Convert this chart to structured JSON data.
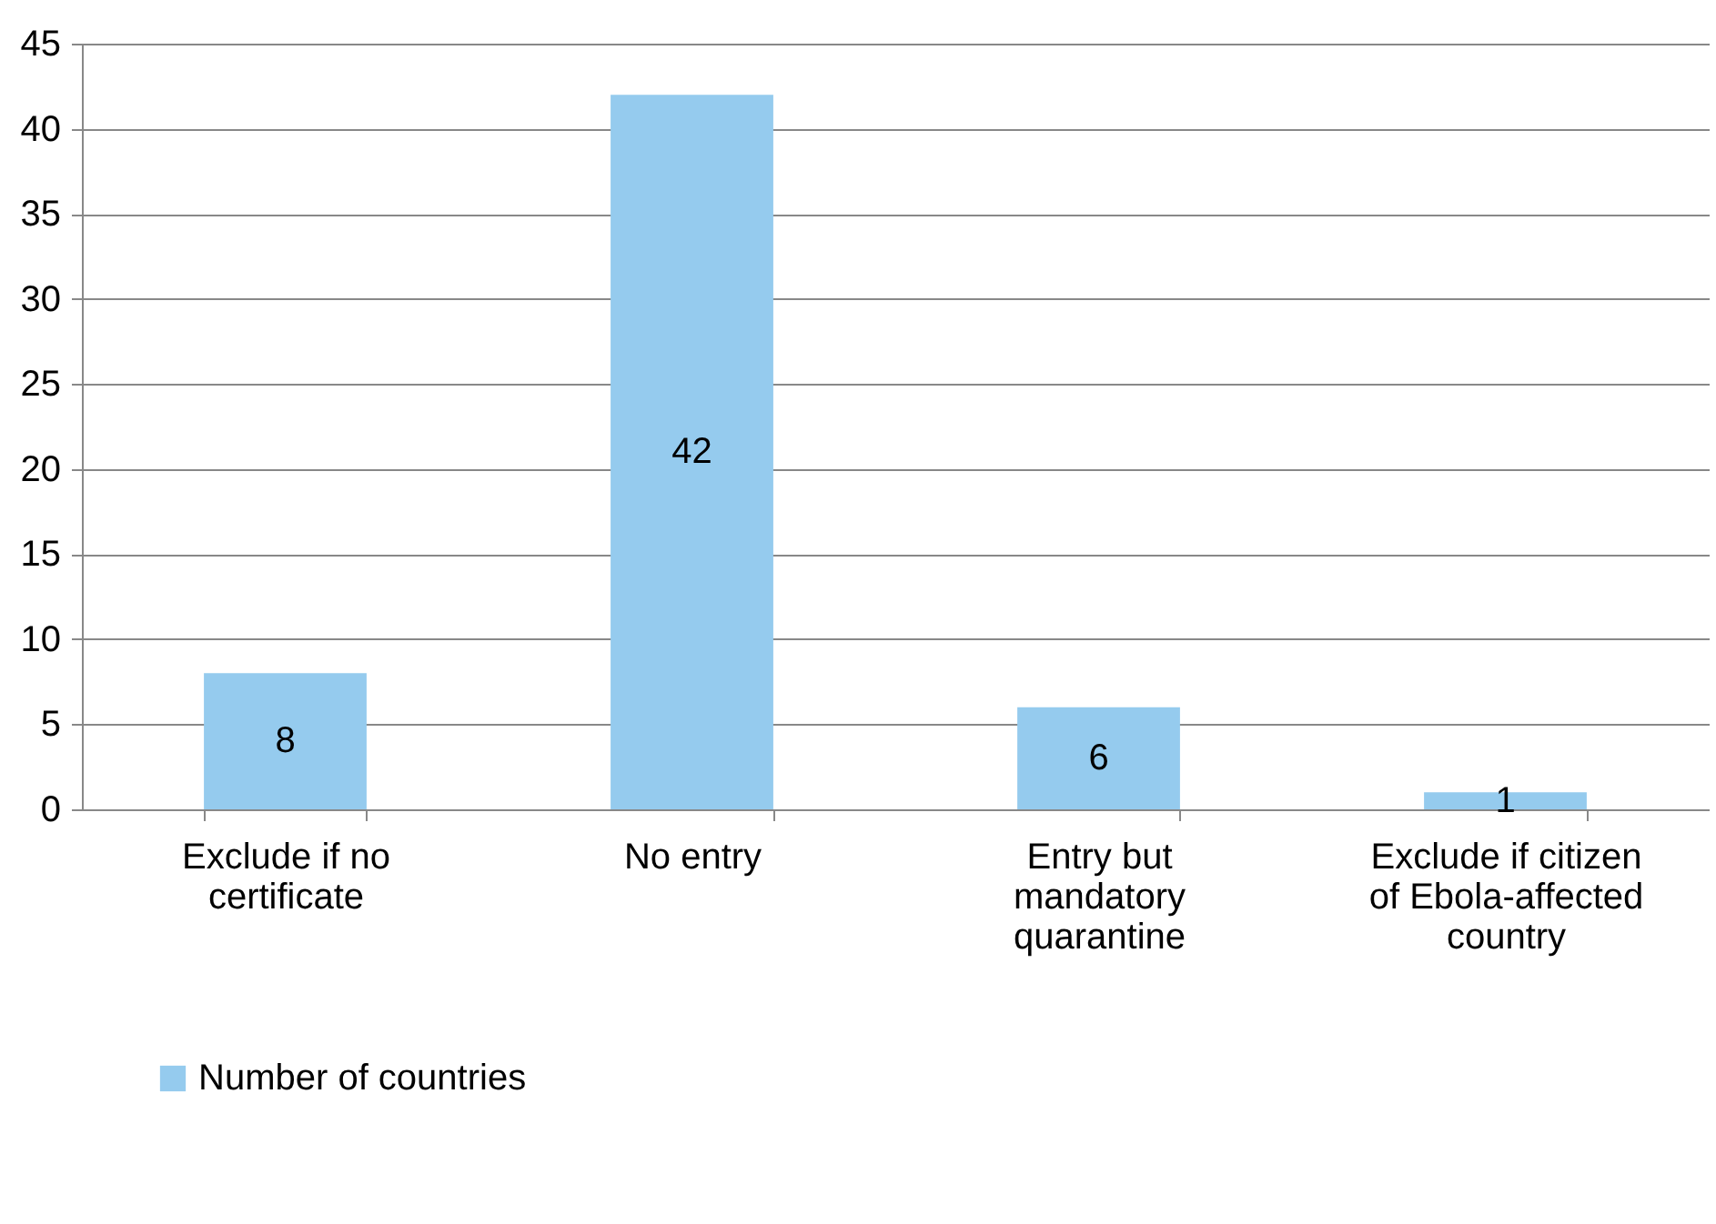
{
  "chart_data": {
    "type": "bar",
    "categories": [
      "Exclude if no certificate",
      "No entry",
      "Entry but mandatory quarantine",
      "Exclude if citizen of Ebola-affected country"
    ],
    "series": [
      {
        "name": "Number of countries",
        "color": "#95cbee",
        "values": [
          8,
          42,
          6,
          1
        ]
      }
    ],
    "ylim": [
      0,
      45
    ],
    "yticks": [
      0,
      5,
      10,
      15,
      20,
      25,
      30,
      35,
      40,
      45
    ],
    "grid": "y",
    "legend": "bottom",
    "data_labels": true
  }
}
